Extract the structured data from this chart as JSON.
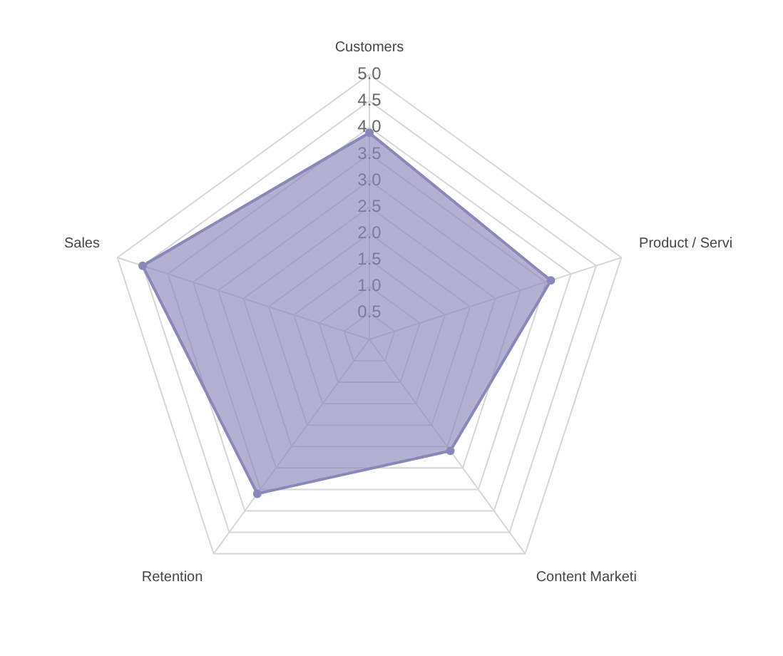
{
  "chart_data": {
    "type": "radar",
    "categories": [
      "Customers",
      "Product / Servi",
      "Content Marketi",
      "Retention",
      "Sales"
    ],
    "series": [
      {
        "color": "#8a87b9",
        "values": [
          3.9,
          3.6,
          2.6,
          3.6,
          4.5
        ]
      }
    ],
    "ylim": [
      0,
      5
    ],
    "yticks": [
      0.5,
      {
        "value": 1,
        "label": "1.0"
      },
      1.5,
      {
        "value": 2,
        "label": "2.0"
      },
      2.5,
      {
        "value": 3,
        "label": "3.0"
      },
      3.5,
      {
        "value": 4,
        "label": "4.0"
      },
      4.5,
      {
        "value": 5,
        "label": "5.0"
      }
    ],
    "grid": true,
    "marker": "circle",
    "legend": false
  }
}
